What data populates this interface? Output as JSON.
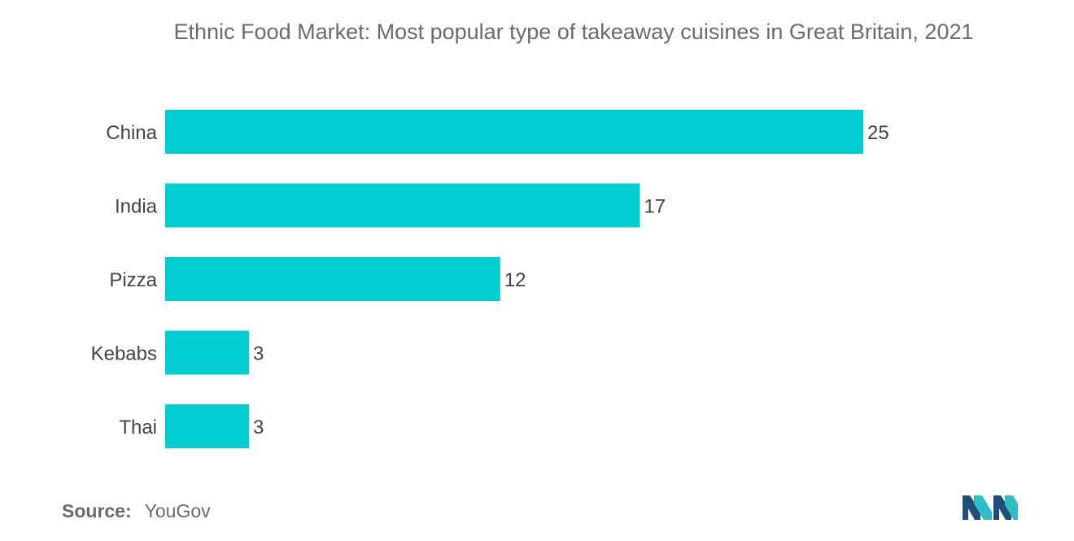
{
  "chart_data": {
    "type": "bar",
    "orientation": "horizontal",
    "title": "Ethnic Food Market: Most popular type of takeaway cuisines in Great Britain, 2021",
    "categories": [
      "China",
      "India",
      "Pizza",
      "Kebabs",
      "Thai"
    ],
    "values": [
      25,
      17,
      12,
      3,
      3
    ],
    "xlim": [
      0,
      25
    ],
    "grid": false,
    "bar_color": "#00cdd1",
    "data_labels": true
  },
  "source": {
    "label": "Source:",
    "value": "YouGov"
  },
  "colors": {
    "text": "#6b6b6b",
    "label": "#444444",
    "logo_dark": "#1f4e79",
    "logo_teal": "#2fbcc7"
  }
}
